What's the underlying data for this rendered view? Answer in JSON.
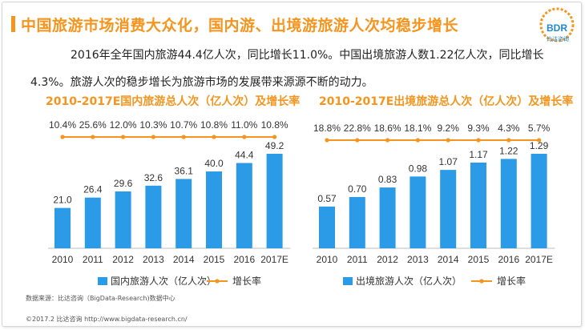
{
  "header": {
    "title": "中国旅游市场消费大众化，国内游、出境游旅游人次均稳步增长",
    "logo_text": "BDR",
    "logo_subtext": "比达咨询"
  },
  "summary": {
    "line1": "2016年全年国内旅游44.4亿人次，同比增长11.0%。中国出境旅游人数1.22亿人次，同比增长",
    "line2": "4.3%。旅游人次的稳步增长为旅游市场的发展带来源源不断的动力。"
  },
  "chart_data": [
    {
      "type": "bar",
      "title": "2010-2017E国内旅游总人次（亿人次）及增长率",
      "categories": [
        "2010",
        "2011",
        "2012",
        "2013",
        "2014",
        "2015",
        "2016",
        "2017E"
      ],
      "series": [
        {
          "name": "国内旅游人次（亿人次）",
          "type": "bar",
          "values": [
            21.0,
            26.4,
            29.6,
            32.6,
            36.1,
            40.0,
            44.4,
            49.2
          ],
          "labels": [
            "21.0",
            "26.4",
            "29.6",
            "32.6",
            "36.1",
            "40.0",
            "44.4",
            "49.2"
          ]
        },
        {
          "name": "增长率",
          "type": "line",
          "values": [
            10.4,
            25.6,
            12.0,
            10.3,
            10.7,
            10.8,
            11.0,
            10.8
          ],
          "labels": [
            "10.4%",
            "25.6%",
            "12.0%",
            "10.3%",
            "10.7%",
            "10.8%",
            "11.0%",
            "10.8%"
          ]
        }
      ],
      "legend": "bottom",
      "grid": false,
      "colors": {
        "bar": "#2b9be8",
        "line": "#f7941d"
      }
    },
    {
      "type": "bar",
      "title": "2010-2017E出境旅游总人次（亿人次）及增长率",
      "categories": [
        "2010",
        "2011",
        "2012",
        "2013",
        "2014",
        "2015",
        "2016",
        "2017E"
      ],
      "series": [
        {
          "name": "出境旅游人次（亿人次）",
          "type": "bar",
          "values": [
            0.57,
            0.7,
            0.83,
            0.98,
            1.07,
            1.17,
            1.22,
            1.29
          ],
          "labels": [
            "0.57",
            "0.70",
            "0.83",
            "0.98",
            "1.07",
            "1.17",
            "1.22",
            "1.29"
          ]
        },
        {
          "name": "增长率",
          "type": "line",
          "values": [
            18.8,
            22.8,
            18.6,
            18.1,
            9.2,
            9.3,
            4.3,
            5.7
          ],
          "labels": [
            "18.8%",
            "22.8%",
            "18.6%",
            "18.1%",
            "9.2%",
            "9.3%",
            "4.3%",
            "5.7%"
          ]
        }
      ],
      "legend": "bottom",
      "grid": false,
      "colors": {
        "bar": "#2b9be8",
        "line": "#f7941d"
      }
    }
  ],
  "footnote": "数据来源：比达咨询（BigData-Research)数据中心",
  "footer": "©2017.2  比达咨询  http://www.bigdata-research.cn/"
}
